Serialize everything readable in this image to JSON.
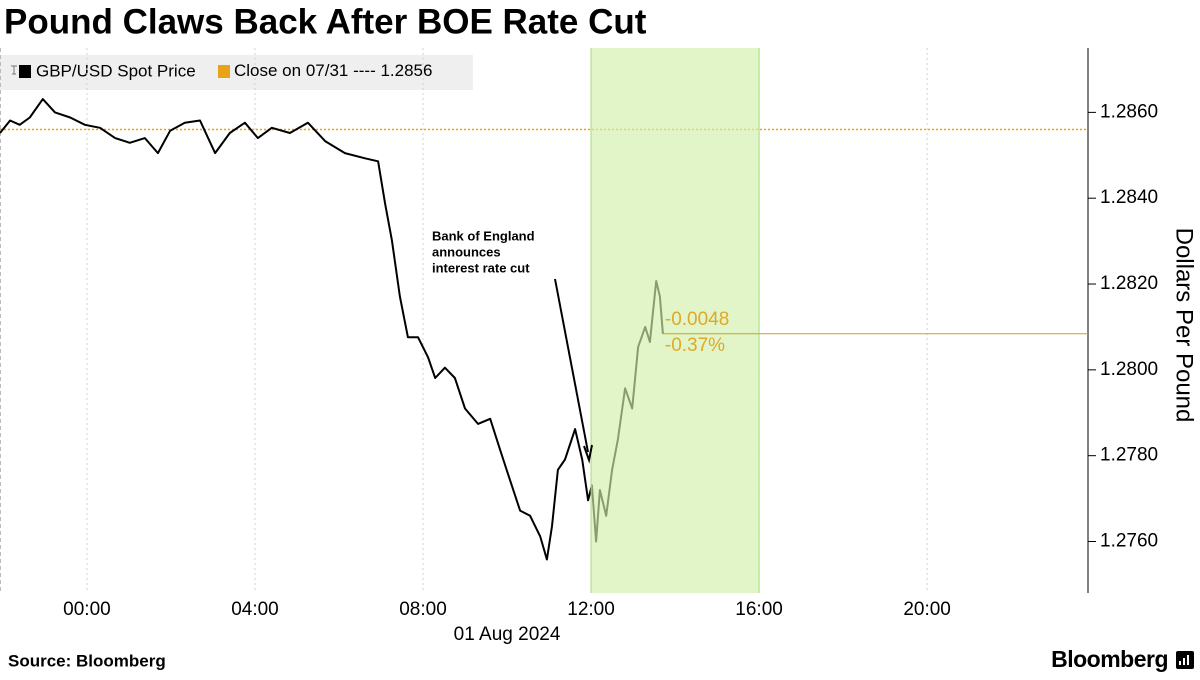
{
  "chart_data": {
    "type": "line",
    "title": "Pound Claws Back After BOE Rate Cut",
    "y_axis_label": "Dollars Per Pound",
    "x_sublabel": {
      "x": 10,
      "label": "01 Aug 2024"
    },
    "source": "Source: Bloomberg",
    "brand": "Bloomberg",
    "x": [
      -2.07,
      -1.83,
      -1.6,
      -1.36,
      -1.05,
      -0.76,
      -0.4,
      -0.05,
      0.31,
      0.67,
      1.02,
      1.38,
      1.69,
      1.98,
      2.33,
      2.69,
      3.05,
      3.4,
      3.76,
      4.07,
      4.4,
      4.83,
      5.26,
      5.67,
      6.14,
      6.62,
      6.93,
      7.1,
      7.26,
      7.45,
      7.64,
      7.88,
      8.12,
      8.29,
      8.52,
      8.76,
      9.0,
      9.31,
      9.6,
      9.83,
      10.07,
      10.31,
      10.55,
      10.79,
      10.95,
      11.07,
      11.21,
      11.38,
      11.62,
      11.79,
      11.93,
      12.02,
      12.12,
      12.21,
      12.36,
      12.5,
      12.64,
      12.81,
      12.98,
      13.12,
      13.29,
      13.4,
      13.55,
      13.64,
      13.71
    ],
    "series": [
      {
        "name": "GBP/USD Spot Price",
        "color": "#000000",
        "values": [
          1.28552,
          1.28581,
          1.28571,
          1.28588,
          1.28631,
          1.286,
          1.28588,
          1.28571,
          1.28564,
          1.2854,
          1.28529,
          1.2854,
          1.28505,
          1.28557,
          1.28576,
          1.28581,
          1.28505,
          1.28552,
          1.28576,
          1.2854,
          1.28564,
          1.28552,
          1.28576,
          1.28533,
          1.28505,
          1.28493,
          1.28486,
          1.28386,
          1.28302,
          1.28171,
          1.28076,
          1.28076,
          1.28029,
          1.27981,
          1.28005,
          1.27981,
          1.2791,
          1.27874,
          1.27886,
          1.27815,
          1.27743,
          1.27672,
          1.2766,
          1.27612,
          1.27558,
          1.27636,
          1.27767,
          1.27791,
          1.27862,
          1.27791,
          1.27696,
          1.27731,
          1.276,
          1.2772,
          1.2766,
          1.27767,
          1.27838,
          1.27957,
          1.2791,
          1.28053,
          1.281,
          1.28065,
          1.28207,
          1.28171,
          1.28084
        ]
      }
    ],
    "reference_line": {
      "name": "Close on 07/31 ----",
      "value": 1.2856,
      "color": "#e8a317"
    },
    "change_labels": [
      "-0.0048",
      "-0.37%"
    ],
    "change_color": "#e0a826",
    "highlight": {
      "xrange": [
        12,
        16
      ],
      "color": "#d2efac",
      "edge_color": "#a9dc78"
    },
    "annotation": [
      "Bank of England",
      "announces",
      "interest rate cut"
    ],
    "xlim": [
      -2.07,
      23.83
    ],
    "ylim": [
      1.2748,
      1.2875
    ],
    "xticks": [
      {
        "value": 0,
        "label": "00:00"
      },
      {
        "value": 4,
        "label": "04:00"
      },
      {
        "value": 8,
        "label": "08:00"
      },
      {
        "value": 12,
        "label": "12:00"
      },
      {
        "value": 16,
        "label": "16:00"
      },
      {
        "value": 20,
        "label": "20:00"
      }
    ],
    "yticks": [
      {
        "value": 1.276,
        "label": "1.2760"
      },
      {
        "value": 1.278,
        "label": "1.2780"
      },
      {
        "value": 1.28,
        "label": "1.2800"
      },
      {
        "value": 1.282,
        "label": "1.2820"
      },
      {
        "value": 1.284,
        "label": "1.2840"
      },
      {
        "value": 1.286,
        "label": "1.2860"
      }
    ],
    "grid": true
  }
}
